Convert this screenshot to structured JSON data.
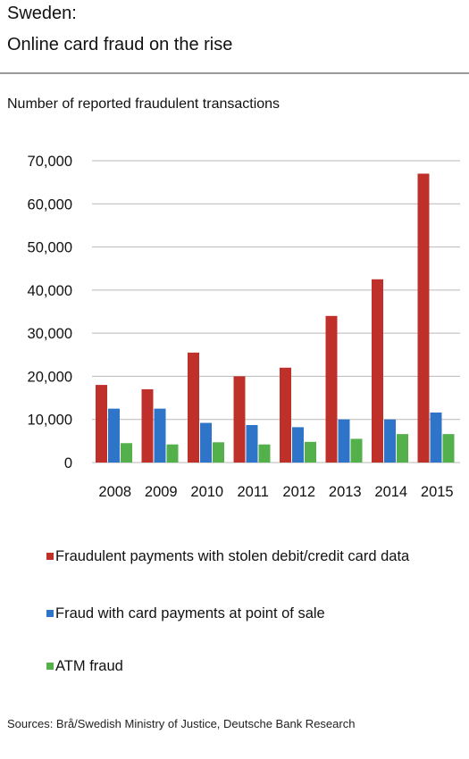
{
  "header": {
    "title_line1": "Sweden:",
    "title_line2": "Online card fraud on the rise",
    "subtitle": "Number of reported fraudulent transactions"
  },
  "chart_data": {
    "type": "bar",
    "title": "Sweden: Online card fraud on the rise",
    "ylabel": "Number of reported fraudulent transactions",
    "categories": [
      "2008",
      "2009",
      "2010",
      "2011",
      "2012",
      "2013",
      "2014",
      "2015"
    ],
    "ylim": [
      0,
      70000
    ],
    "yticks": [
      0,
      10000,
      20000,
      30000,
      40000,
      50000,
      60000,
      70000
    ],
    "ytick_labels": [
      "0",
      "10,000",
      "20,000",
      "30,000",
      "40,000",
      "50,000",
      "60,000",
      "70,000"
    ],
    "grid": true,
    "legend_position": "bottom",
    "series": [
      {
        "name": "Fraudulent payments with stolen debit/credit card data",
        "color": "#c0302a",
        "values": [
          18000,
          17000,
          25500,
          20000,
          22000,
          34000,
          42500,
          67000
        ]
      },
      {
        "name": "Fraud with card payments at point of sale",
        "color": "#2e74c8",
        "values": [
          12500,
          12500,
          9200,
          8700,
          8200,
          10000,
          10000,
          11600
        ]
      },
      {
        "name": "ATM fraud",
        "color": "#54b04a",
        "values": [
          4500,
          4200,
          4700,
          4200,
          4800,
          5500,
          6600,
          6600
        ]
      }
    ]
  },
  "footer": {
    "source": "Sources: Brå/Swedish Ministry of Justice, Deutsche Bank Research"
  }
}
